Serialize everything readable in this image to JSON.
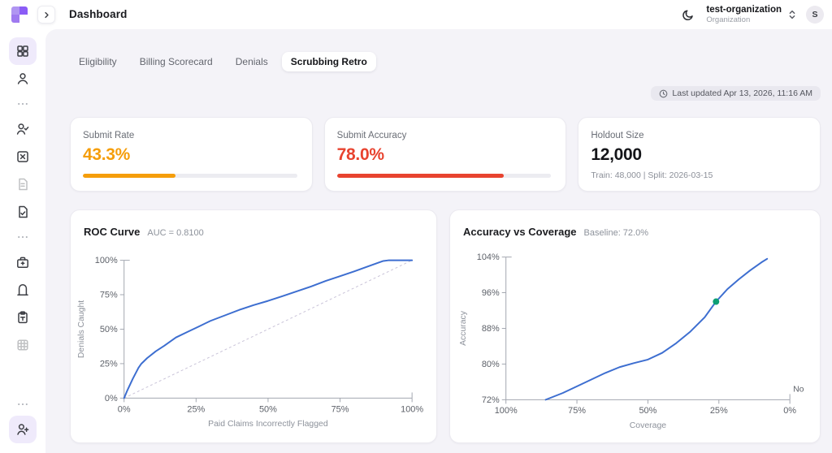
{
  "topbar": {
    "title": "Dashboard",
    "collapse_icon": "chevron-right",
    "theme_icon": "moon",
    "org_name": "test-organization",
    "org_role": "Organization",
    "org_switcher_icon": "chevrons-up-down",
    "avatar_initial": "S"
  },
  "sidebar": {
    "items": [
      {
        "icon": "dashboard-grid",
        "active": true
      },
      {
        "icon": "user"
      },
      {
        "icon": "ellipsis",
        "divider": true
      },
      {
        "icon": "user-check"
      },
      {
        "icon": "x-square"
      },
      {
        "icon": "file-lines",
        "muted": true
      },
      {
        "icon": "file-check"
      },
      {
        "icon": "ellipsis",
        "divider": true
      },
      {
        "icon": "briefcase-plus"
      },
      {
        "icon": "archway-door"
      },
      {
        "icon": "clipboard-text"
      },
      {
        "icon": "grid-table",
        "muted": true
      },
      {
        "icon": "ellipsis",
        "divider": true,
        "push": true
      },
      {
        "icon": "user-plus",
        "active": true
      }
    ]
  },
  "tabs": [
    {
      "label": "Eligibility",
      "active": false
    },
    {
      "label": "Billing Scorecard",
      "active": false
    },
    {
      "label": "Denials",
      "active": false
    },
    {
      "label": "Scrubbing Retro",
      "active": true
    }
  ],
  "last_updated": {
    "icon": "clock",
    "text": "Last updated Apr 13, 2026, 11:16 AM"
  },
  "metrics": [
    {
      "label": "Submit Rate",
      "value": "43.3%",
      "percent": 43.3,
      "color": "#f59e0b",
      "track_color": "#ececf1"
    },
    {
      "label": "Submit Accuracy",
      "value": "78.0%",
      "percent": 78.0,
      "color": "#e8432f",
      "track_color": "#ececf1"
    },
    {
      "label": "Holdout Size",
      "value": "12,000",
      "sub": "Train: 48,000 | Split: 2026-03-15"
    }
  ],
  "chart_data": [
    {
      "type": "line",
      "title": "ROC Curve",
      "subtitle": "AUC = 0.8100",
      "xlabel": "Paid Claims Incorrectly Flagged",
      "ylabel": "Denials Caught",
      "xlim": [
        0,
        100
      ],
      "ylim": [
        0,
        100
      ],
      "xticks": [
        0,
        25,
        50,
        75,
        100
      ],
      "yticks": [
        0,
        25,
        50,
        75,
        100
      ],
      "tick_suffix": "%",
      "x_reversed": false,
      "grid": false,
      "diagonal_reference": true,
      "diagonal_color": "#c9c3d8",
      "line_color": "#3d6ed0",
      "series": [
        {
          "name": "ROC",
          "points": [
            [
              0,
              0
            ],
            [
              1,
              5
            ],
            [
              3,
              14
            ],
            [
              5,
              22
            ],
            [
              6,
              25
            ],
            [
              8,
              29
            ],
            [
              11,
              34
            ],
            [
              14,
              38
            ],
            [
              18,
              44
            ],
            [
              22,
              48
            ],
            [
              26,
              52
            ],
            [
              30,
              56
            ],
            [
              35,
              60
            ],
            [
              40,
              64
            ],
            [
              45,
              67.5
            ],
            [
              50,
              70.5
            ],
            [
              55,
              74
            ],
            [
              60,
              77.5
            ],
            [
              65,
              81
            ],
            [
              70,
              85
            ],
            [
              75,
              88.5
            ],
            [
              80,
              92
            ],
            [
              84,
              95
            ],
            [
              88,
              98
            ],
            [
              90,
              99.5
            ],
            [
              92,
              100
            ],
            [
              100,
              100
            ]
          ]
        }
      ]
    },
    {
      "type": "line",
      "title": "Accuracy vs Coverage",
      "subtitle": "Baseline: 72.0%",
      "xlabel": "Coverage",
      "ylabel": "Accuracy",
      "xlim": [
        0,
        100
      ],
      "ylim": [
        72,
        104
      ],
      "xticks": [
        100,
        75,
        50,
        25,
        0
      ],
      "yticks": [
        72,
        80,
        88,
        96,
        104
      ],
      "tick_suffix": "%",
      "x_reversed": true,
      "grid": false,
      "line_color": "#3d6ed0",
      "marker": {
        "x": 26,
        "y": 94,
        "color": "#0d9f74"
      },
      "end_annotation": "No",
      "series": [
        {
          "name": "Accuracy",
          "points": [
            [
              86,
              72
            ],
            [
              80,
              73.5
            ],
            [
              75,
              75
            ],
            [
              70,
              76.5
            ],
            [
              65,
              78
            ],
            [
              60,
              79.3
            ],
            [
              55,
              80.2
            ],
            [
              50,
              81
            ],
            [
              45,
              82.5
            ],
            [
              40,
              84.7
            ],
            [
              35,
              87.3
            ],
            [
              30,
              90.5
            ],
            [
              26,
              94
            ],
            [
              22,
              96.8
            ],
            [
              18,
              99
            ],
            [
              14,
              101
            ],
            [
              10,
              102.8
            ],
            [
              8,
              103.6
            ]
          ]
        }
      ]
    }
  ]
}
